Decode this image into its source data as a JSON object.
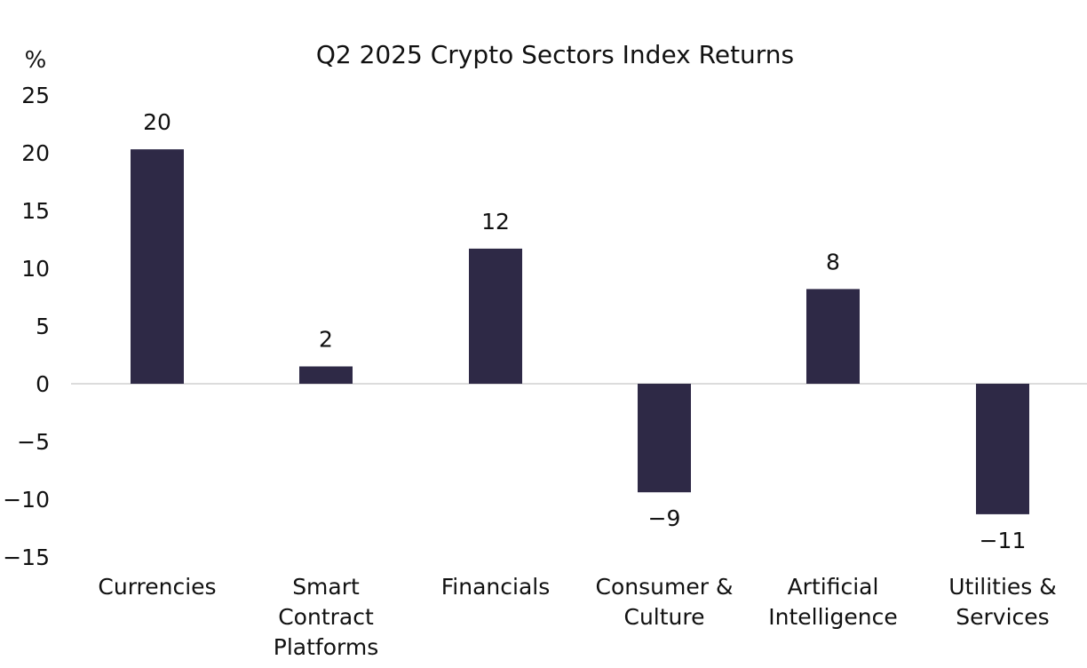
{
  "chart_data": {
    "type": "bar",
    "title": "Q2 2025 Crypto Sectors Index Returns",
    "unit": "%",
    "categories": [
      [
        "Currencies"
      ],
      [
        "Smart",
        "Contract",
        "Platforms"
      ],
      [
        "Financials"
      ],
      [
        "Consumer &",
        "Culture"
      ],
      [
        "Artificial",
        "Intelligence"
      ],
      [
        "Utilities &",
        "Services"
      ]
    ],
    "values": [
      20.3,
      1.5,
      11.7,
      -9.4,
      8.2,
      -11.3
    ],
    "data_labels": [
      "20",
      "2",
      "12",
      "-9",
      "8",
      "-11"
    ],
    "yticks": [
      "25",
      "20",
      "15",
      "10",
      "5",
      "0",
      "-5",
      "-10",
      "-15"
    ],
    "ylim": [
      -15,
      25
    ],
    "grid": false,
    "bar_color": "#2e2946",
    "zero_line_color": "#d0d0d0"
  }
}
